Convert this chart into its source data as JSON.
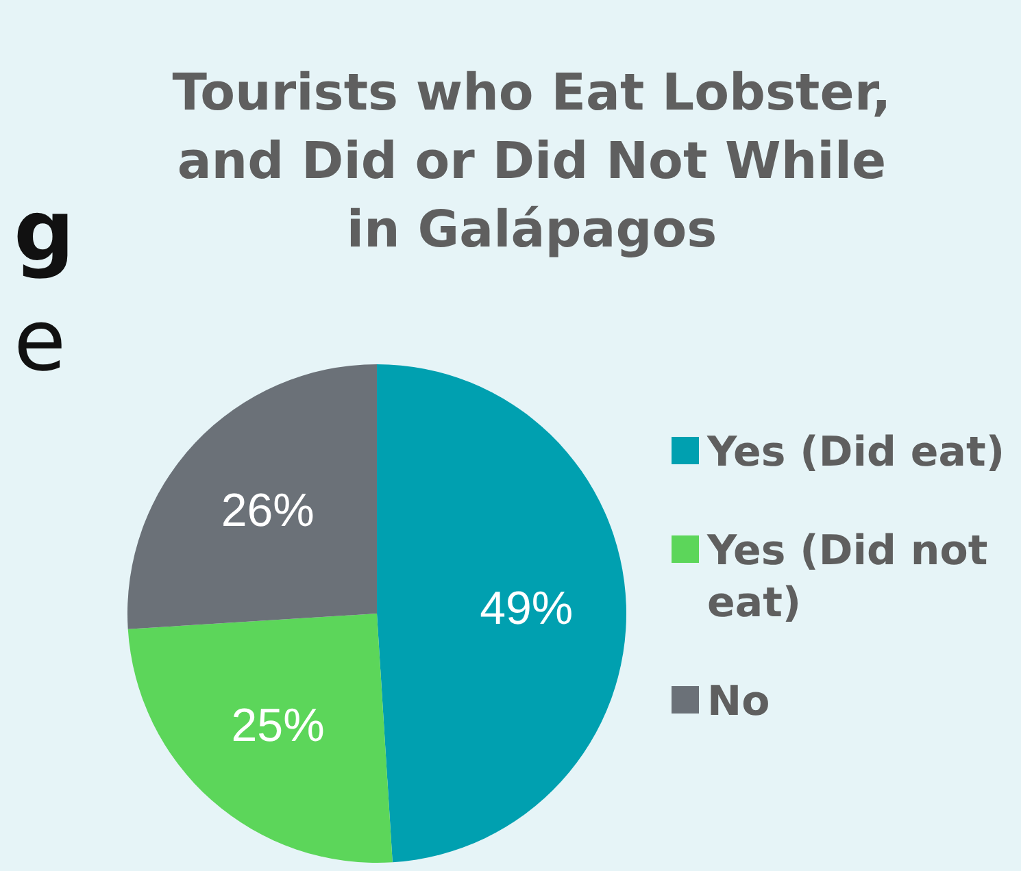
{
  "chart_data": {
    "type": "pie",
    "title": "Tourists who Eat Lobster, and Did or Did Not While in Galápagos",
    "categories": [
      "Yes (Did eat)",
      "Yes (Did not eat)",
      "No"
    ],
    "values": [
      49,
      25,
      26
    ],
    "colors": [
      "#00a0b0",
      "#5cd65a",
      "#6b7178"
    ],
    "value_labels": [
      "49%",
      "25%",
      "26%"
    ],
    "legend": "right",
    "annotations": [
      "g",
      "e"
    ]
  }
}
